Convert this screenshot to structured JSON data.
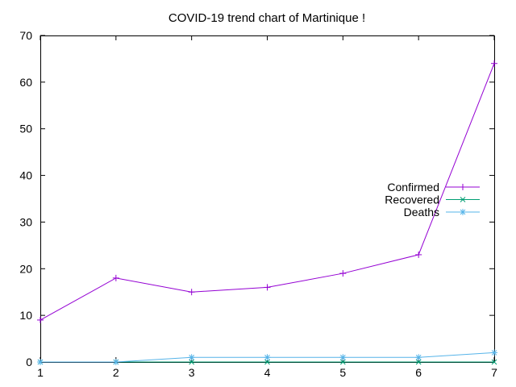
{
  "chart_data": {
    "type": "line",
    "title": "COVID-19 trend chart of Martinique !",
    "xlabel": "",
    "ylabel": "",
    "x": [
      1,
      2,
      3,
      4,
      5,
      6,
      7
    ],
    "xlim": [
      1,
      7
    ],
    "ylim": [
      0,
      70
    ],
    "xticks": [
      1,
      2,
      3,
      4,
      5,
      6,
      7
    ],
    "yticks": [
      0,
      10,
      20,
      30,
      40,
      50,
      60,
      70
    ],
    "grid": false,
    "legend_position": "right",
    "series": [
      {
        "name": "Confirmed",
        "color": "#9400d3",
        "marker": "plus",
        "values": [
          9,
          18,
          15,
          16,
          19,
          23,
          64
        ]
      },
      {
        "name": "Recovered",
        "color": "#009e73",
        "marker": "cross",
        "values": [
          0,
          0,
          0,
          0,
          0,
          0,
          0
        ]
      },
      {
        "name": "Deaths",
        "color": "#56b4e9",
        "marker": "star",
        "values": [
          0,
          0,
          1,
          1,
          1,
          1,
          2
        ]
      }
    ]
  }
}
